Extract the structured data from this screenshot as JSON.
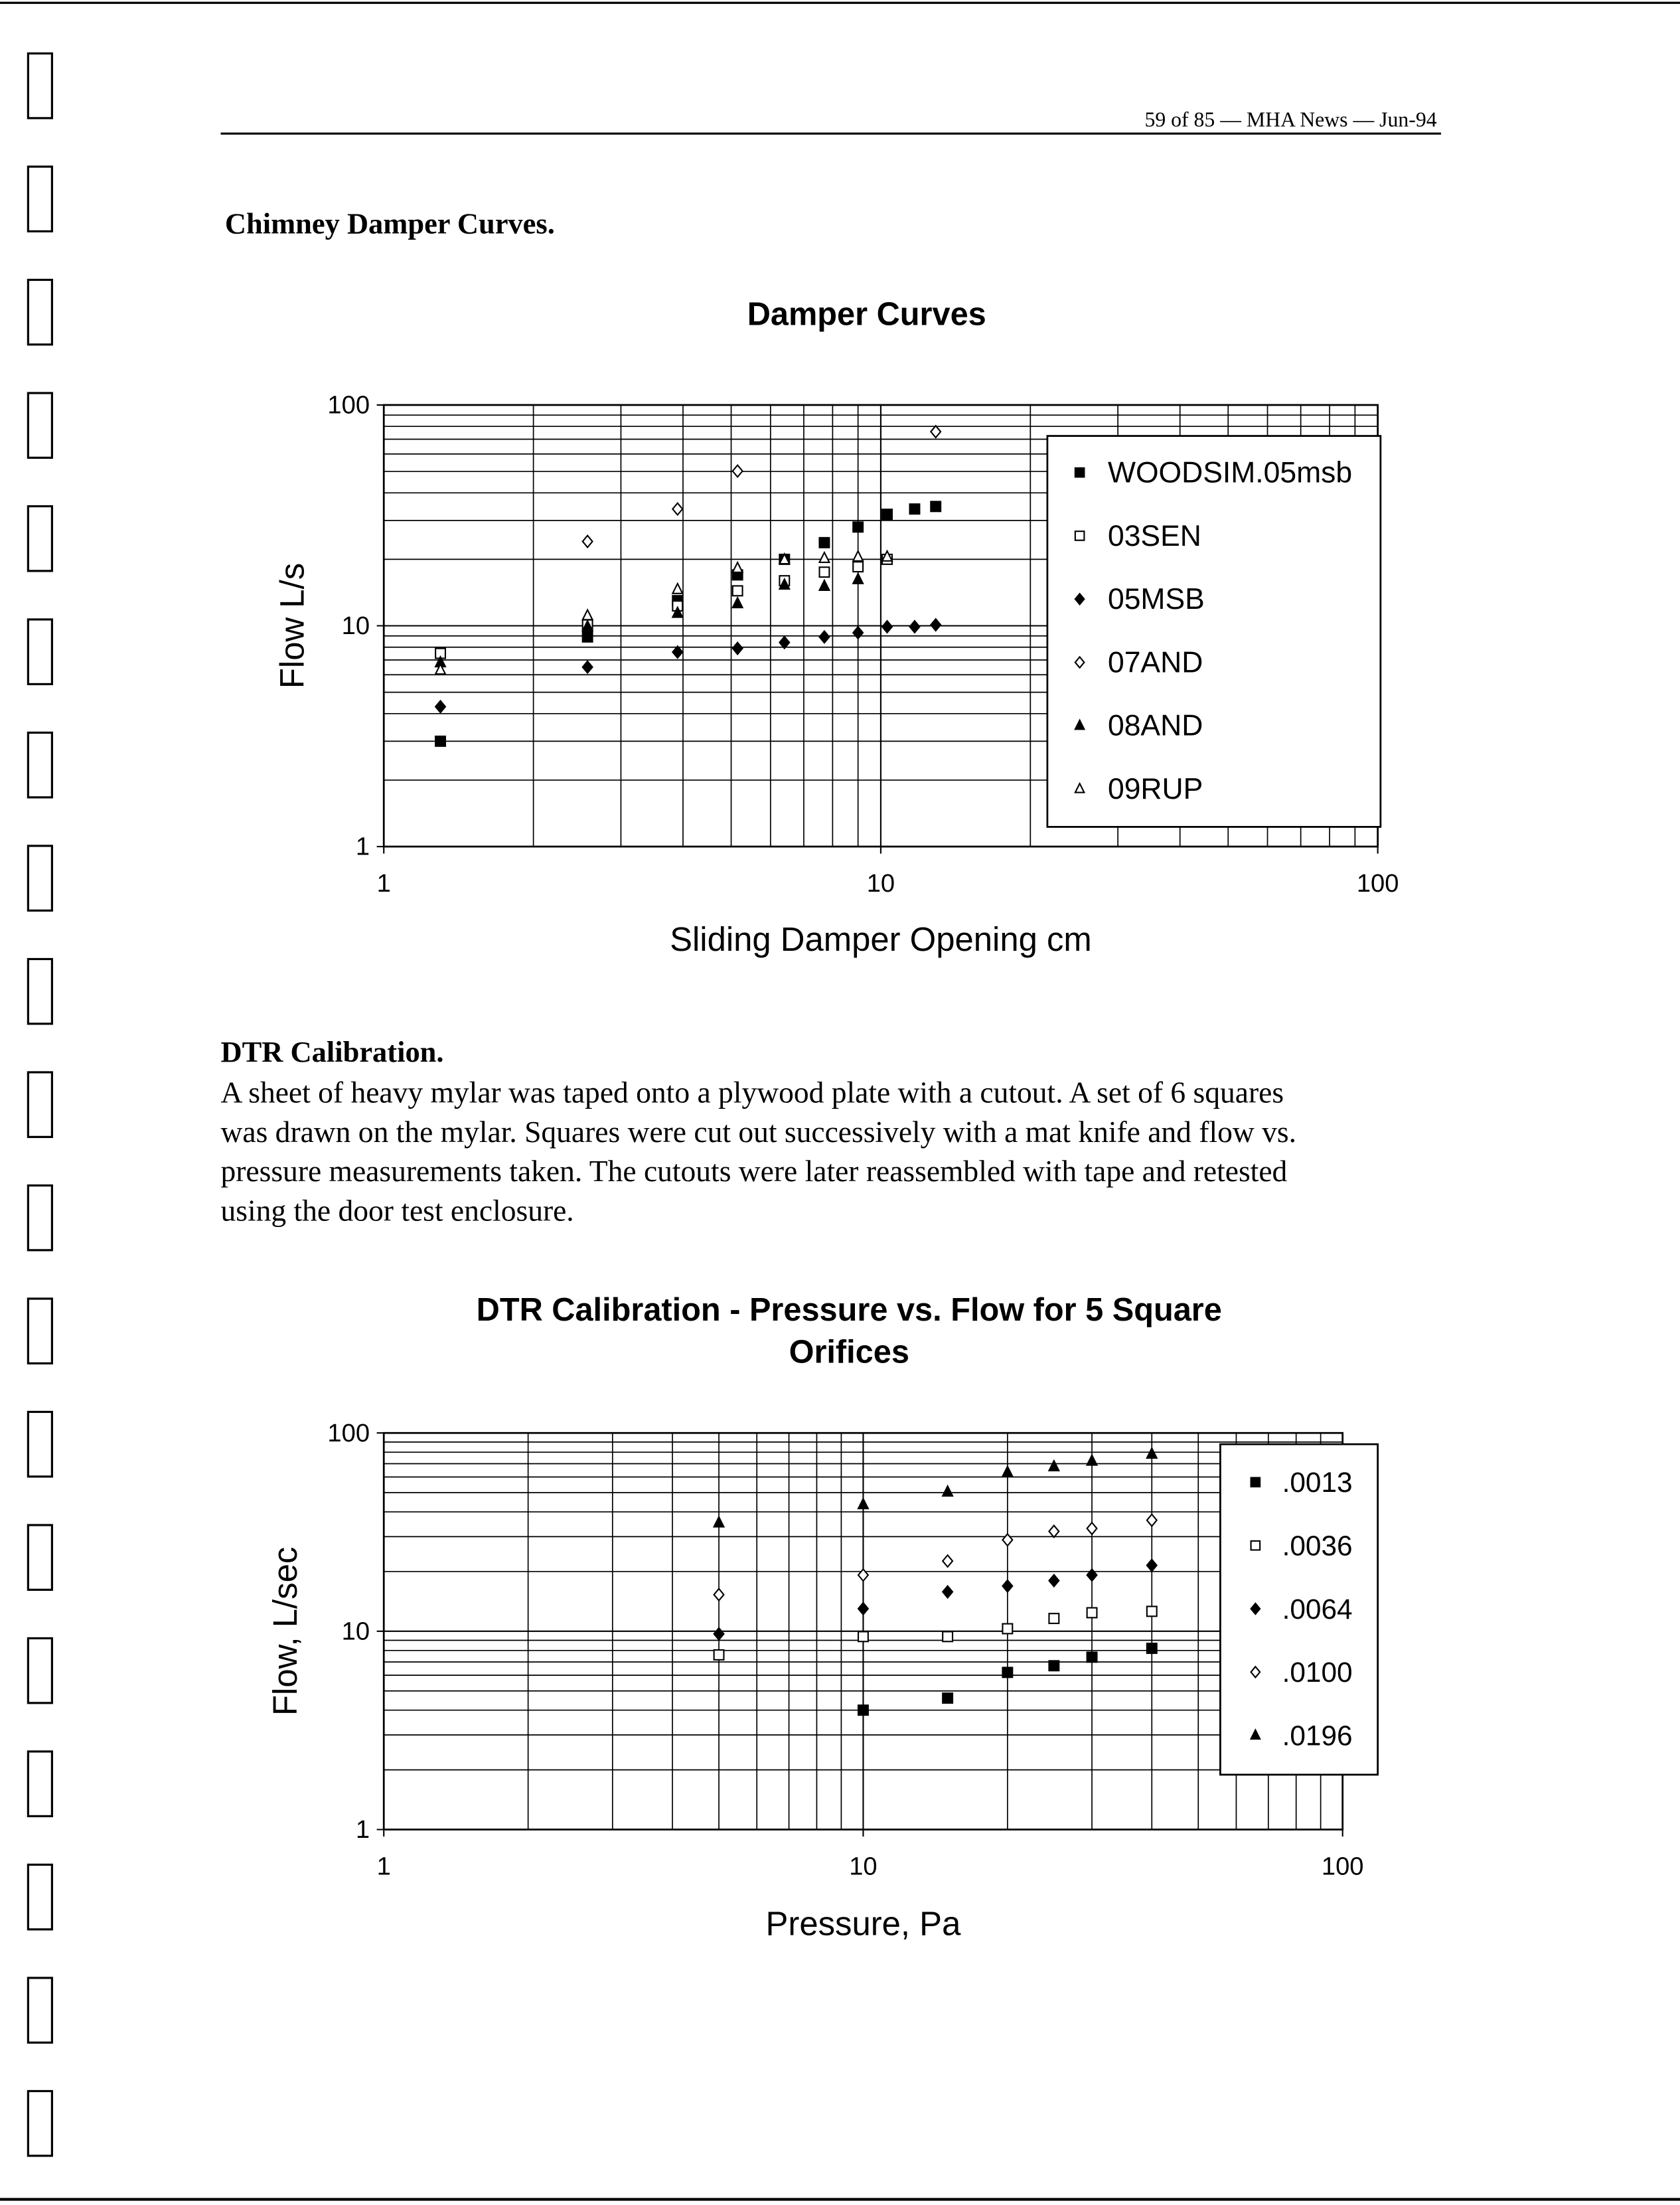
{
  "header": {
    "running_head": "59 of 85 — MHA News — Jun-94"
  },
  "sections": [
    {
      "heading": "Chimney Damper Curves."
    },
    {
      "heading": "DTR Calibration.",
      "paragraph_lines": [
        "A sheet of heavy mylar was taped onto a plywood plate with a cutout. A set of 6 squares",
        "was drawn on the mylar. Squares were cut out successively with a mat knife and flow vs.",
        "pressure measurements taken. The cutouts were later reassembled with tape and retested",
        "using the door test enclosure."
      ]
    }
  ],
  "chart_data": [
    {
      "type": "scatter",
      "title": [
        "Damper Curves"
      ],
      "x_label": "Sliding Damper Opening cm",
      "y_label": "Flow L/s",
      "xscale": "log",
      "yscale": "log",
      "xlim": [
        1,
        100
      ],
      "ylim": [
        1,
        100
      ],
      "xticks": [
        1,
        10,
        100
      ],
      "yticks": [
        1,
        10,
        100
      ],
      "grid": true,
      "legend": "upper right",
      "series": [
        {
          "name": "WOODSIM.05msb",
          "marker": "square-filled",
          "color": "#000000",
          "x": [
            1.3,
            2.57,
            3.9,
            5.15,
            6.4,
            7.7,
            9.0,
            10.3,
            11.7,
            12.9
          ],
          "values": [
            3.0,
            8.9,
            13,
            17,
            20,
            23.8,
            28,
            32,
            33.8,
            34.7
          ]
        },
        {
          "name": "03SEN",
          "marker": "square-open",
          "color": "#000000",
          "x": [
            1.3,
            2.57,
            3.9,
            5.15,
            6.4,
            7.7,
            9.0,
            10.3
          ],
          "values": [
            7.5,
            10.1,
            12.3,
            14.4,
            16,
            17.5,
            18.5,
            20
          ]
        },
        {
          "name": "05MSB",
          "marker": "diamond-filled",
          "color": "#000000",
          "x": [
            1.3,
            2.57,
            3.9,
            5.15,
            6.4,
            7.7,
            9.0,
            10.3,
            11.7,
            12.9
          ],
          "values": [
            4.3,
            6.5,
            7.6,
            7.9,
            8.4,
            8.9,
            9.3,
            9.9,
            9.9,
            10.1
          ]
        },
        {
          "name": "07AND",
          "marker": "diamond-open",
          "color": "#000000",
          "x": [
            2.57,
            3.9,
            5.15,
            12.9
          ],
          "values": [
            24.1,
            33.8,
            50.2,
            75.7
          ]
        },
        {
          "name": "08AND",
          "marker": "triangle-filled",
          "color": "#000000",
          "x": [
            1.3,
            2.57,
            3.9,
            5.15,
            6.4,
            7.7,
            9.0
          ],
          "values": [
            6.8,
            9.9,
            11.4,
            12.6,
            15.3,
            15.1,
            16.2
          ]
        },
        {
          "name": "09RUP",
          "marker": "triangle-open",
          "color": "#000000",
          "x": [
            1.3,
            2.57,
            3.9,
            5.15,
            6.4,
            7.7,
            9.0,
            10.3
          ],
          "values": [
            6.3,
            11.1,
            14.6,
            18.2,
            19.9,
            20.2,
            20.5,
            20.5
          ]
        }
      ]
    },
    {
      "type": "scatter",
      "title": [
        "DTR Calibration - Pressure vs. Flow for 5 Square",
        "Orifices"
      ],
      "x_label": "Pressure, Pa",
      "y_label": "Flow, L/sec",
      "xscale": "log",
      "yscale": "log",
      "xlim": [
        1,
        100
      ],
      "ylim": [
        1,
        100
      ],
      "xticks": [
        1,
        10,
        100
      ],
      "yticks": [
        1,
        10,
        100
      ],
      "grid": true,
      "legend": "upper right",
      "series": [
        {
          "name": ".0013",
          "marker": "square-filled",
          "color": "#000000",
          "x": [
            10,
            15,
            20,
            25,
            30,
            40
          ],
          "values": [
            4.0,
            4.6,
            6.2,
            6.7,
            7.4,
            8.2
          ]
        },
        {
          "name": ".0036",
          "marker": "square-open",
          "color": "#000000",
          "x": [
            5,
            10,
            15,
            20,
            25,
            30,
            40
          ],
          "values": [
            7.6,
            9.4,
            9.4,
            10.3,
            11.6,
            12.4,
            12.6
          ]
        },
        {
          "name": ".0064",
          "marker": "diamond-filled",
          "color": "#000000",
          "x": [
            5,
            10,
            15,
            20,
            25,
            30,
            40
          ],
          "values": [
            9.7,
            13,
            15.8,
            16.9,
            18.0,
            19.2,
            21.5
          ]
        },
        {
          "name": ".0100",
          "marker": "diamond-open",
          "color": "#000000",
          "x": [
            5,
            10,
            15,
            20,
            25,
            30,
            40
          ],
          "values": [
            15.3,
            19.2,
            22.6,
            28.9,
            31.9,
            33,
            36.3
          ]
        },
        {
          "name": ".0196",
          "marker": "triangle-filled",
          "color": "#000000",
          "x": [
            5,
            10,
            15,
            20,
            25,
            30,
            40
          ],
          "values": [
            35.2,
            43.5,
            50.4,
            63.3,
            67.6,
            72.1,
            78.3
          ]
        }
      ]
    }
  ]
}
